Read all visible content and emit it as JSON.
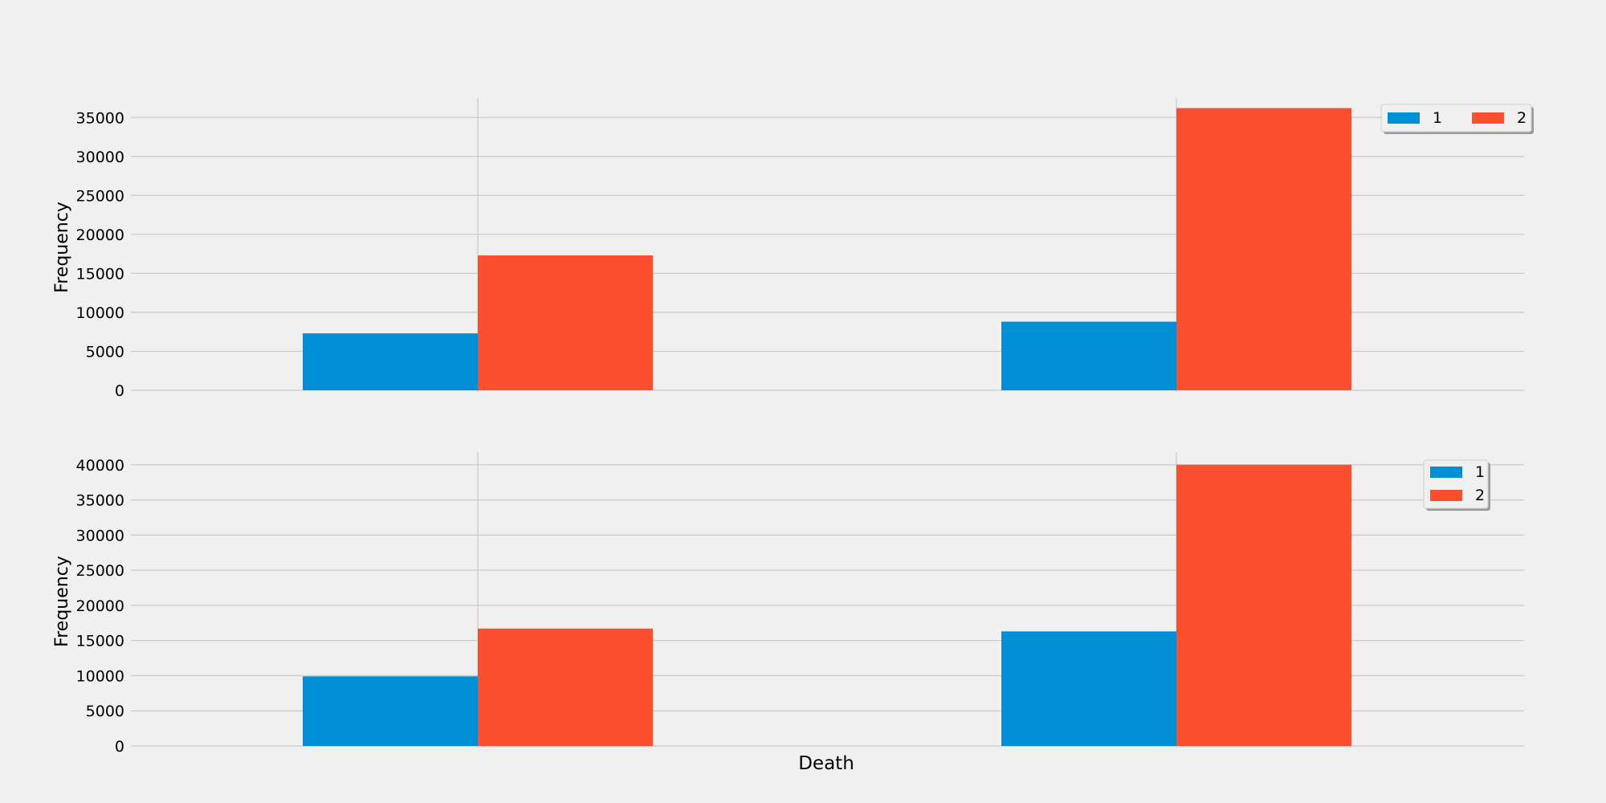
{
  "colors": {
    "background": "#f0f0f0",
    "grid": "#cbcbcb",
    "series_1": "#008fd5",
    "series_2": "#fc4f30"
  },
  "chart_data": [
    {
      "type": "bar",
      "categories": [
        "",
        ""
      ],
      "series": [
        {
          "name": "1",
          "values": [
            7300,
            8800
          ]
        },
        {
          "name": "2",
          "values": [
            17300,
            36200
          ]
        }
      ],
      "ylabel": "Frequency",
      "xlabel": "",
      "ylim": [
        0,
        37500
      ],
      "yticks": [
        0,
        5000,
        10000,
        15000,
        20000,
        25000,
        30000,
        35000
      ],
      "grid": true,
      "legend": {
        "placement": "top-right",
        "columns": 2
      }
    },
    {
      "type": "bar",
      "categories": [
        "",
        ""
      ],
      "series": [
        {
          "name": "1",
          "values": [
            9900,
            16300
          ]
        },
        {
          "name": "2",
          "values": [
            16700,
            40000
          ]
        }
      ],
      "ylabel": "Frequency",
      "xlabel": "Death",
      "ylim": [
        0,
        41800
      ],
      "yticks": [
        0,
        5000,
        10000,
        15000,
        20000,
        25000,
        30000,
        35000,
        40000
      ],
      "grid": true,
      "legend": {
        "placement": "top-right",
        "columns": 1
      }
    }
  ]
}
